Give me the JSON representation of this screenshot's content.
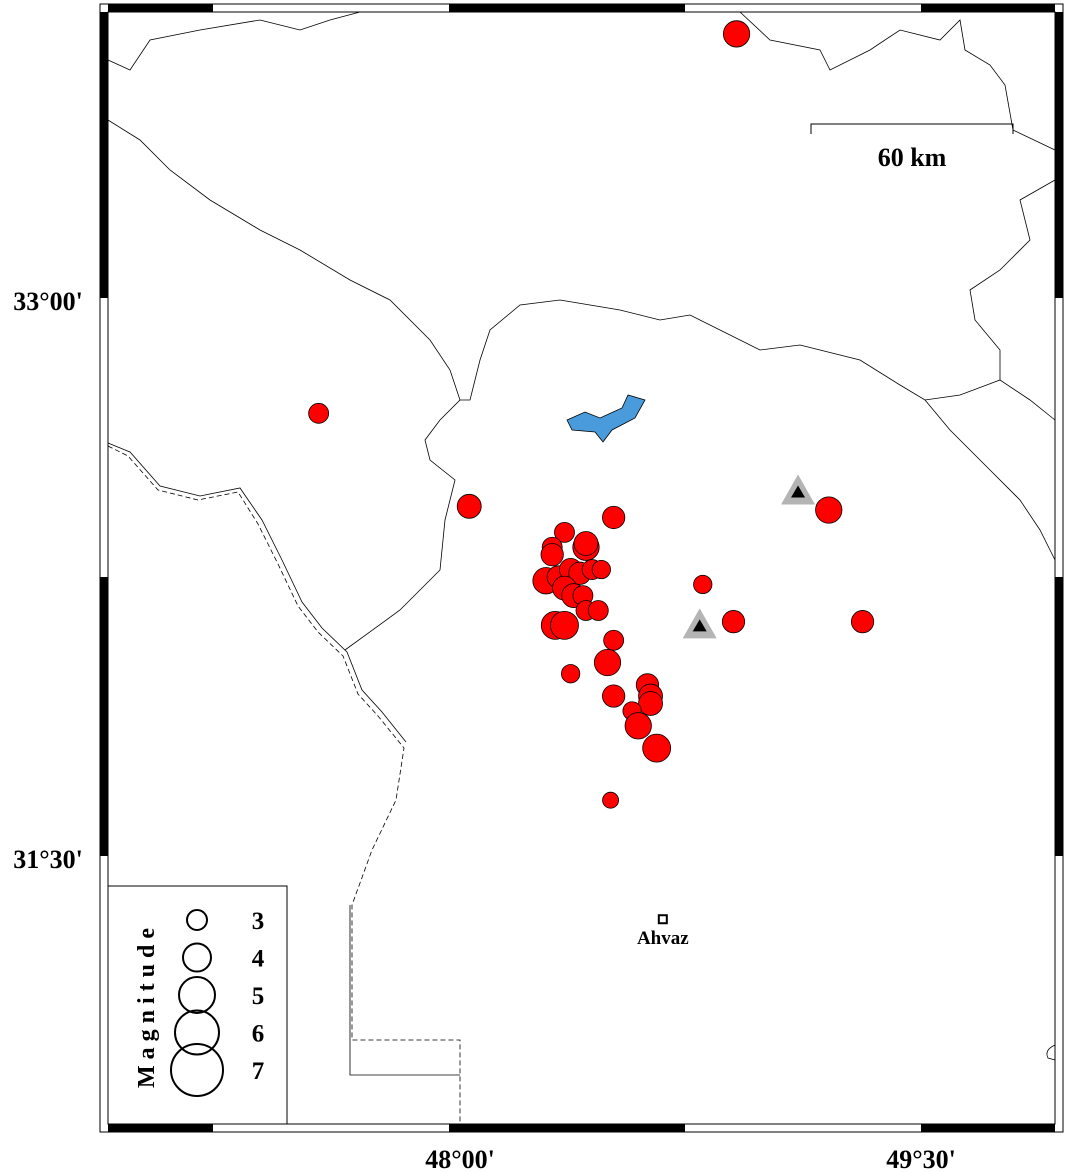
{
  "map": {
    "axes": {
      "lat_labels": [
        {
          "lat": 33.0,
          "text": "33°00'"
        },
        {
          "lat": 31.5,
          "text": "31°30'"
        }
      ],
      "lon_labels": [
        {
          "lon": 48.0,
          "text": "48°00'"
        },
        {
          "lon": 49.5,
          "text": "49°30'"
        }
      ]
    },
    "scale_bar": {
      "label": "60 km"
    },
    "city": {
      "name": "Ahvaz",
      "lon": 48.66,
      "lat": 31.33
    },
    "stations": [
      {
        "lon": 49.1,
        "lat": 32.48
      },
      {
        "lon": 48.78,
        "lat": 32.12
      }
    ],
    "colors": {
      "event": "#ff0000",
      "lake": "#4a9bdc",
      "station_outer": "#b4b4b4",
      "station_inner": "#000000"
    },
    "events": [
      {
        "lon": 48.9,
        "lat": 33.71,
        "mag": 3.8
      },
      {
        "lon": 47.54,
        "lat": 32.69,
        "mag": 3.0
      },
      {
        "lon": 48.03,
        "lat": 32.44,
        "mag": 3.5
      },
      {
        "lon": 49.2,
        "lat": 32.43,
        "mag": 3.8
      },
      {
        "lon": 48.5,
        "lat": 32.41,
        "mag": 3.3
      },
      {
        "lon": 48.79,
        "lat": 32.23,
        "mag": 2.8
      },
      {
        "lon": 48.89,
        "lat": 32.13,
        "mag": 3.3
      },
      {
        "lon": 49.31,
        "lat": 32.13,
        "mag": 3.3
      },
      {
        "lon": 48.49,
        "lat": 31.65,
        "mag": 2.5
      },
      {
        "lon": 48.34,
        "lat": 32.37,
        "mag": 3.0
      },
      {
        "lon": 48.3,
        "lat": 32.33,
        "mag": 3.0
      },
      {
        "lon": 48.3,
        "lat": 32.31,
        "mag": 3.3
      },
      {
        "lon": 48.41,
        "lat": 32.33,
        "mag": 3.8
      },
      {
        "lon": 48.41,
        "lat": 32.34,
        "mag": 3.5
      },
      {
        "lon": 48.28,
        "lat": 32.24,
        "mag": 3.8
      },
      {
        "lon": 48.32,
        "lat": 32.25,
        "mag": 3.3
      },
      {
        "lon": 48.36,
        "lat": 32.27,
        "mag": 3.3
      },
      {
        "lon": 48.39,
        "lat": 32.26,
        "mag": 3.3
      },
      {
        "lon": 48.43,
        "lat": 32.27,
        "mag": 3.0
      },
      {
        "lon": 48.46,
        "lat": 32.27,
        "mag": 2.8
      },
      {
        "lon": 48.34,
        "lat": 32.22,
        "mag": 3.5
      },
      {
        "lon": 48.37,
        "lat": 32.2,
        "mag": 3.5
      },
      {
        "lon": 48.4,
        "lat": 32.2,
        "mag": 3.0
      },
      {
        "lon": 48.41,
        "lat": 32.16,
        "mag": 3.0
      },
      {
        "lon": 48.45,
        "lat": 32.16,
        "mag": 3.0
      },
      {
        "lon": 48.31,
        "lat": 32.12,
        "mag": 4.0
      },
      {
        "lon": 48.34,
        "lat": 32.12,
        "mag": 4.0
      },
      {
        "lon": 48.36,
        "lat": 31.99,
        "mag": 2.8
      },
      {
        "lon": 48.5,
        "lat": 32.08,
        "mag": 3.0
      },
      {
        "lon": 48.48,
        "lat": 32.02,
        "mag": 3.8
      },
      {
        "lon": 48.5,
        "lat": 31.93,
        "mag": 3.3
      },
      {
        "lon": 48.61,
        "lat": 31.96,
        "mag": 3.3
      },
      {
        "lon": 48.62,
        "lat": 31.93,
        "mag": 3.5
      },
      {
        "lon": 48.62,
        "lat": 31.91,
        "mag": 3.5
      },
      {
        "lon": 48.56,
        "lat": 31.89,
        "mag": 2.8
      },
      {
        "lon": 48.58,
        "lat": 31.85,
        "mag": 3.8
      },
      {
        "lon": 48.64,
        "lat": 31.79,
        "mag": 4.0
      }
    ],
    "legend": {
      "title": "Magnitude",
      "items": [
        {
          "mag": 3,
          "label": "3"
        },
        {
          "mag": 4,
          "label": "4"
        },
        {
          "mag": 5,
          "label": "5"
        },
        {
          "mag": 6,
          "label": "6"
        },
        {
          "mag": 7,
          "label": "7"
        }
      ]
    }
  }
}
